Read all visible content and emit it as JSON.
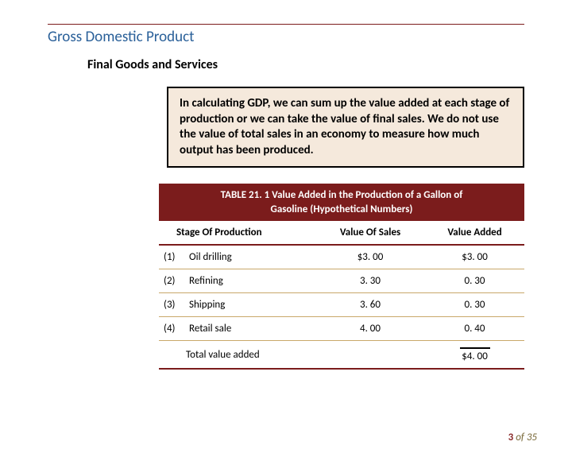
{
  "title": "Gross Domestic Product",
  "subtitle": "Final Goods and Services",
  "callout_text": "In calculating GDP, we can sum up the value added at each stage of production or we can take the value of final sales. We do not use the value of total sales in an economy to measure how much output has been produced.",
  "table": {
    "caption_line1": "TABLE 21. 1  Value Added in the Production of a Gallon of",
    "caption_line2": "Gasoline (Hypothetical Numbers)",
    "columns": {
      "c0": "Stage Of Production",
      "c1": "Value Of Sales",
      "c2": "Value Added"
    },
    "rows": {
      "r0": {
        "num": "(1)",
        "name": "Oil drilling",
        "sales": "$3. 00",
        "va": "$3. 00"
      },
      "r1": {
        "num": "(2)",
        "name": "Refining",
        "sales": "3. 30",
        "va": "0. 30"
      },
      "r2": {
        "num": "(3)",
        "name": "Shipping",
        "sales": "3. 60",
        "va": "0. 30"
      },
      "r3": {
        "num": "(4)",
        "name": "Retail sale",
        "sales": "4. 00",
        "va": "0. 40"
      }
    },
    "total_label": "Total value added",
    "total_value": "$4. 00"
  },
  "pager": {
    "current": "3",
    "of_word": "of",
    "total": "35"
  },
  "colors": {
    "accent": "#7b1c1c",
    "title_blue": "#2a6099",
    "callout_bg": "#f5e9dc",
    "row_border": "#c9a86a"
  }
}
